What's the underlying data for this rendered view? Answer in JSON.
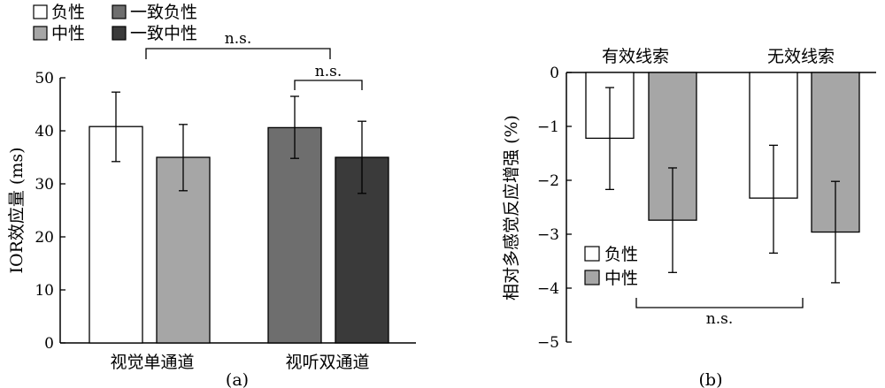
{
  "chart_data": [
    {
      "type": "bar",
      "panel_label": "(a)",
      "ylabel": "IOR效应量 (ms)",
      "ylim": [
        0,
        50
      ],
      "yticks": [
        0,
        10,
        20,
        30,
        40,
        50
      ],
      "groups": [
        "视觉单通道",
        "视听双通道"
      ],
      "legend": [
        {
          "name": "负性",
          "color": "#ffffff"
        },
        {
          "name": "中性",
          "color": "#a6a6a6"
        },
        {
          "name": "一致负性",
          "color": "#6e6e6e"
        },
        {
          "name": "一致中性",
          "color": "#3a3a3a"
        }
      ],
      "bars": [
        {
          "group": 0,
          "series": "负性",
          "value": 40.8,
          "err_low": 34.2,
          "err_high": 47.3,
          "color": "#ffffff"
        },
        {
          "group": 0,
          "series": "中性",
          "value": 35.0,
          "err_low": 28.7,
          "err_high": 41.2,
          "color": "#a6a6a6"
        },
        {
          "group": 1,
          "series": "一致负性",
          "value": 40.6,
          "err_low": 34.8,
          "err_high": 46.5,
          "color": "#6e6e6e"
        },
        {
          "group": 1,
          "series": "一致中性",
          "value": 35.0,
          "err_low": 28.2,
          "err_high": 41.8,
          "color": "#3a3a3a"
        }
      ],
      "annotations": [
        "n.s.",
        "n.s."
      ]
    },
    {
      "type": "bar",
      "panel_label": "(b)",
      "ylabel": "相对多感觉反应增强 (%)",
      "ylim": [
        -5,
        0
      ],
      "yticks": [
        0,
        -1,
        -2,
        -3,
        -4,
        -5
      ],
      "groups": [
        "有效线索",
        "无效线索"
      ],
      "legend": [
        {
          "name": "负性",
          "color": "#ffffff"
        },
        {
          "name": "中性",
          "color": "#a6a6a6"
        }
      ],
      "bars": [
        {
          "group": 0,
          "series": "负性",
          "value": -1.22,
          "err_low": -2.17,
          "err_high": -0.28,
          "color": "#ffffff"
        },
        {
          "group": 0,
          "series": "中性",
          "value": -2.74,
          "err_low": -3.71,
          "err_high": -1.77,
          "color": "#a6a6a6"
        },
        {
          "group": 1,
          "series": "负性",
          "value": -2.33,
          "err_low": -3.35,
          "err_high": -1.35,
          "color": "#ffffff"
        },
        {
          "group": 1,
          "series": "中性",
          "value": -2.96,
          "err_low": -3.9,
          "err_high": -2.02,
          "color": "#a6a6a6"
        }
      ],
      "annotations": [
        "n.s."
      ]
    }
  ]
}
